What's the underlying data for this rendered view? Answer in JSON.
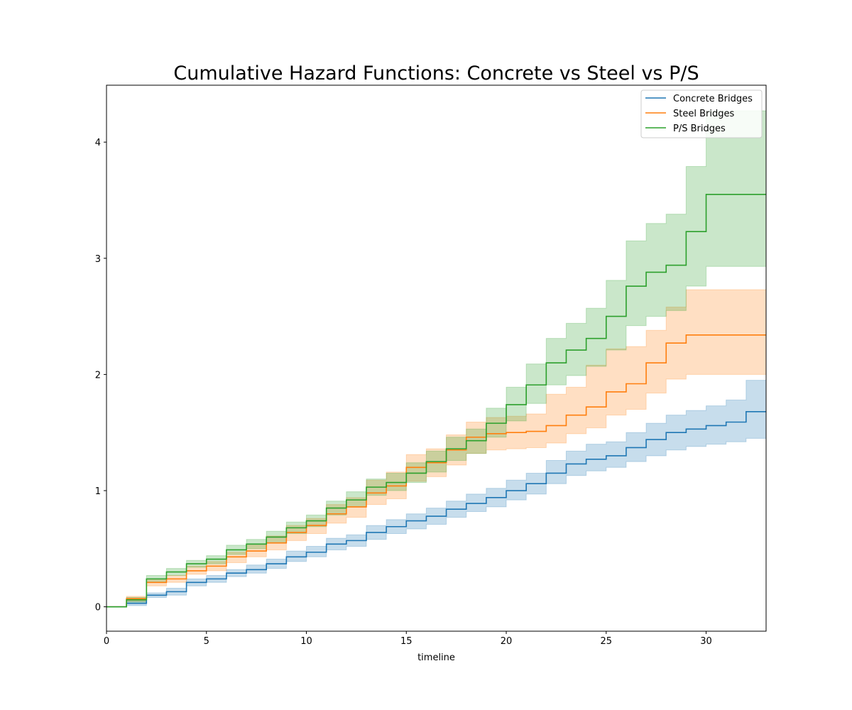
{
  "chart_data": {
    "type": "line",
    "step": true,
    "title": "Cumulative Hazard Functions: Concrete vs Steel vs P/S",
    "xlabel": "timeline",
    "ylabel": "",
    "xlim": [
      0,
      33
    ],
    "ylim": [
      -0.21,
      4.49
    ],
    "xticks": [
      0,
      5,
      10,
      15,
      20,
      25,
      30
    ],
    "yticks": [
      0,
      1,
      2,
      3,
      4
    ],
    "grid": false,
    "legend_position": "top-right",
    "x": [
      0,
      1,
      2,
      3,
      4,
      5,
      6,
      7,
      8,
      9,
      10,
      11,
      12,
      13,
      14,
      15,
      16,
      17,
      18,
      19,
      20,
      21,
      22,
      23,
      24,
      25,
      26,
      27,
      28,
      29,
      30,
      31,
      32,
      33
    ],
    "series": [
      {
        "name": "Concrete Bridges",
        "color": "#1f77b4",
        "band_color": "#1f77b4",
        "values": [
          0,
          0.03,
          0.1,
          0.13,
          0.21,
          0.24,
          0.29,
          0.32,
          0.37,
          0.43,
          0.47,
          0.54,
          0.57,
          0.64,
          0.69,
          0.74,
          0.78,
          0.84,
          0.89,
          0.94,
          1.0,
          1.06,
          1.15,
          1.23,
          1.27,
          1.3,
          1.37,
          1.44,
          1.5,
          1.53,
          1.56,
          1.59,
          1.68,
          1.68
        ],
        "lower": [
          0,
          0.01,
          0.08,
          0.1,
          0.18,
          0.21,
          0.26,
          0.29,
          0.33,
          0.39,
          0.43,
          0.49,
          0.52,
          0.58,
          0.63,
          0.67,
          0.71,
          0.77,
          0.82,
          0.86,
          0.92,
          0.97,
          1.06,
          1.13,
          1.17,
          1.2,
          1.25,
          1.3,
          1.35,
          1.38,
          1.4,
          1.42,
          1.45,
          1.45
        ],
        "upper": [
          0,
          0.05,
          0.12,
          0.16,
          0.24,
          0.27,
          0.32,
          0.36,
          0.41,
          0.48,
          0.52,
          0.59,
          0.62,
          0.7,
          0.75,
          0.8,
          0.85,
          0.91,
          0.97,
          1.02,
          1.09,
          1.15,
          1.26,
          1.34,
          1.4,
          1.42,
          1.5,
          1.58,
          1.65,
          1.69,
          1.73,
          1.78,
          1.95,
          1.95
        ]
      },
      {
        "name": "Steel Bridges",
        "color": "#ff7f0e",
        "band_color": "#ff7f0e",
        "values": [
          0,
          0.07,
          0.21,
          0.24,
          0.31,
          0.35,
          0.43,
          0.48,
          0.55,
          0.64,
          0.7,
          0.8,
          0.86,
          0.98,
          1.04,
          1.2,
          1.24,
          1.35,
          1.46,
          1.49,
          1.5,
          1.51,
          1.56,
          1.65,
          1.72,
          1.85,
          1.92,
          2.1,
          2.27,
          2.34,
          2.34,
          2.34,
          2.34,
          2.34
        ],
        "lower": [
          0,
          0.05,
          0.18,
          0.21,
          0.28,
          0.31,
          0.38,
          0.43,
          0.49,
          0.57,
          0.63,
          0.72,
          0.77,
          0.88,
          0.93,
          1.08,
          1.12,
          1.22,
          1.32,
          1.35,
          1.36,
          1.37,
          1.41,
          1.49,
          1.54,
          1.65,
          1.7,
          1.84,
          1.96,
          2.0,
          2.0,
          2.0,
          2.0,
          2.0
        ],
        "upper": [
          0,
          0.09,
          0.24,
          0.27,
          0.35,
          0.39,
          0.47,
          0.53,
          0.61,
          0.7,
          0.76,
          0.88,
          0.94,
          1.09,
          1.16,
          1.31,
          1.36,
          1.48,
          1.59,
          1.63,
          1.64,
          1.66,
          1.83,
          1.89,
          2.08,
          2.22,
          2.24,
          2.38,
          2.58,
          2.73,
          2.73,
          2.73,
          2.73,
          2.73
        ]
      },
      {
        "name": "P/S Bridges",
        "color": "#2ca02c",
        "band_color": "#2ca02c",
        "values": [
          0,
          0.06,
          0.24,
          0.3,
          0.37,
          0.41,
          0.49,
          0.54,
          0.6,
          0.68,
          0.74,
          0.85,
          0.92,
          1.03,
          1.07,
          1.15,
          1.25,
          1.36,
          1.43,
          1.58,
          1.74,
          1.91,
          2.1,
          2.21,
          2.31,
          2.5,
          2.76,
          2.88,
          2.94,
          3.23,
          3.55,
          3.55,
          3.55,
          3.55
        ],
        "lower": [
          0,
          0.04,
          0.21,
          0.27,
          0.34,
          0.37,
          0.45,
          0.5,
          0.55,
          0.63,
          0.69,
          0.79,
          0.86,
          0.96,
          1.0,
          1.07,
          1.16,
          1.26,
          1.32,
          1.46,
          1.6,
          1.75,
          1.91,
          1.99,
          2.07,
          2.21,
          2.42,
          2.5,
          2.55,
          2.76,
          2.93,
          2.93,
          2.93,
          2.93
        ],
        "upper": [
          0,
          0.08,
          0.27,
          0.33,
          0.4,
          0.44,
          0.53,
          0.58,
          0.65,
          0.73,
          0.79,
          0.91,
          0.99,
          1.1,
          1.15,
          1.24,
          1.34,
          1.46,
          1.53,
          1.71,
          1.89,
          2.09,
          2.31,
          2.44,
          2.57,
          2.81,
          3.15,
          3.3,
          3.38,
          3.79,
          4.27,
          4.27,
          4.27,
          4.27
        ]
      }
    ]
  }
}
